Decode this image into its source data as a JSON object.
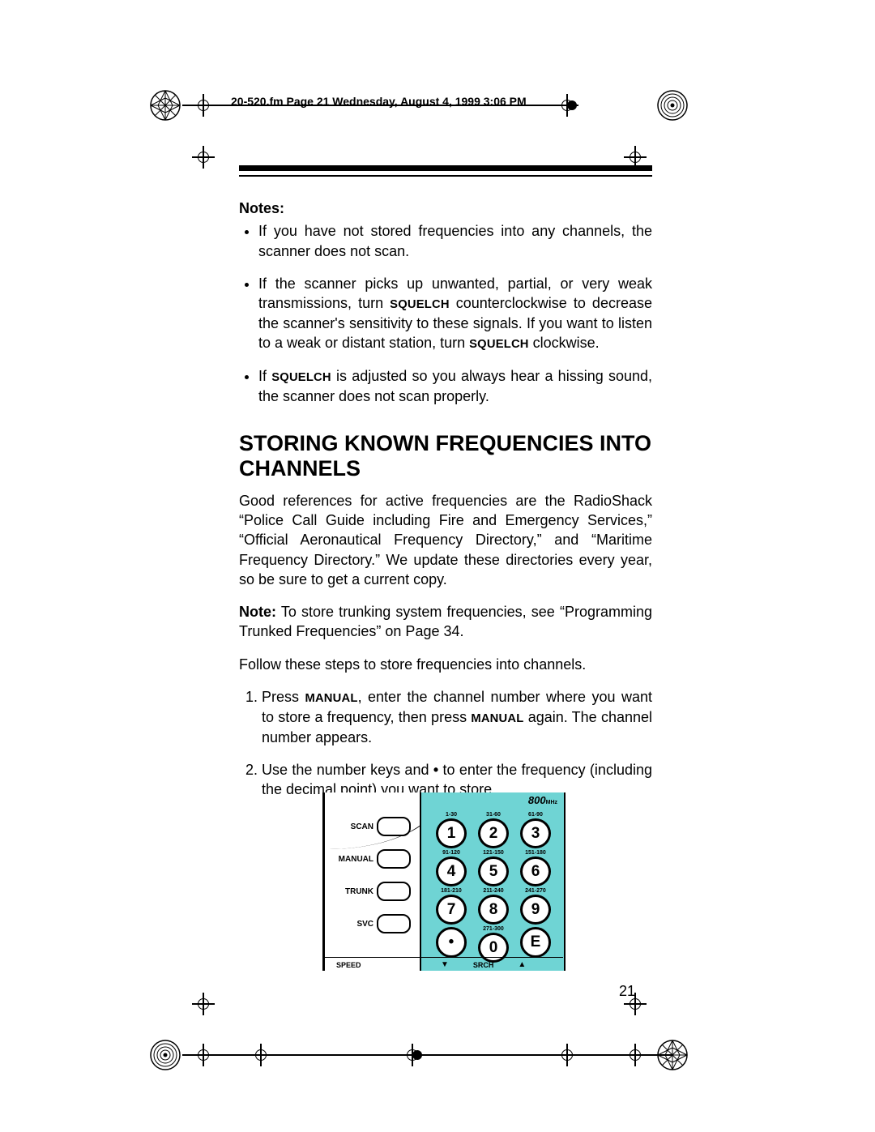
{
  "header_text": "20-520.fm  Page 21  Wednesday, August 4, 1999  3:06 PM",
  "notes_heading": "Notes:",
  "bullets": [
    "If you have not stored frequencies into any channels, the scanner does not scan.",
    "If the scanner picks up unwanted, partial, or very weak transmissions, turn <span class=\"caps\">SQUELCH</span> counterclockwise to decrease the scanner's sensitivity to these signals. If you want to listen to a weak or distant station, turn <span class=\"caps\">SQUELCH</span> clockwise.",
    "If <span class=\"caps\">SQUELCH</span> is adjusted so you always hear a hissing sound, the scanner does not scan properly."
  ],
  "section_heading": "STORING KNOWN FREQUENCIES INTO CHANNELS",
  "para1": "Good references for active frequencies are the RadioShack “Police Call Guide including Fire and Emergency Services,” “Official Aeronautical Frequency Directory,” and “Maritime Frequency Directory.” We update these directories every year, so be sure to get a current copy.",
  "para2": "<b>Note:</b> To store trunking system frequencies, see “Programming Trunked Frequencies” on Page 34.",
  "para3": "Follow these steps to store frequencies into channels.",
  "steps": [
    "Press <span class=\"caps\">MANUAL</span>, enter the channel number where you want to store a frequency, then press <span class=\"caps\">MANUAL</span> again. The channel number appears.",
    "Use the number keys and <b>•</b> to enter the frequency (including the decimal point) you want to store."
  ],
  "page_number": "21",
  "scanner": {
    "side_labels": [
      "SCAN",
      "MANUAL",
      "TRUNK",
      "SVC",
      "SPEED"
    ],
    "badge": "800",
    "badge_sub": "MHz",
    "ranges": [
      "1-30",
      "31-60",
      "61-90",
      "91-120",
      "121-150",
      "151-180",
      "181-210",
      "211-240",
      "241-270",
      "",
      "271-300",
      ""
    ],
    "keys": [
      "1",
      "2",
      "3",
      "4",
      "5",
      "6",
      "7",
      "8",
      "9",
      "•",
      "0",
      "E"
    ],
    "bottom": {
      "speed": "SPEED",
      "down": "▼",
      "srch": "SRCH",
      "up": "▲"
    }
  },
  "colors": {
    "keypad_bg": "#6fd4d4"
  }
}
